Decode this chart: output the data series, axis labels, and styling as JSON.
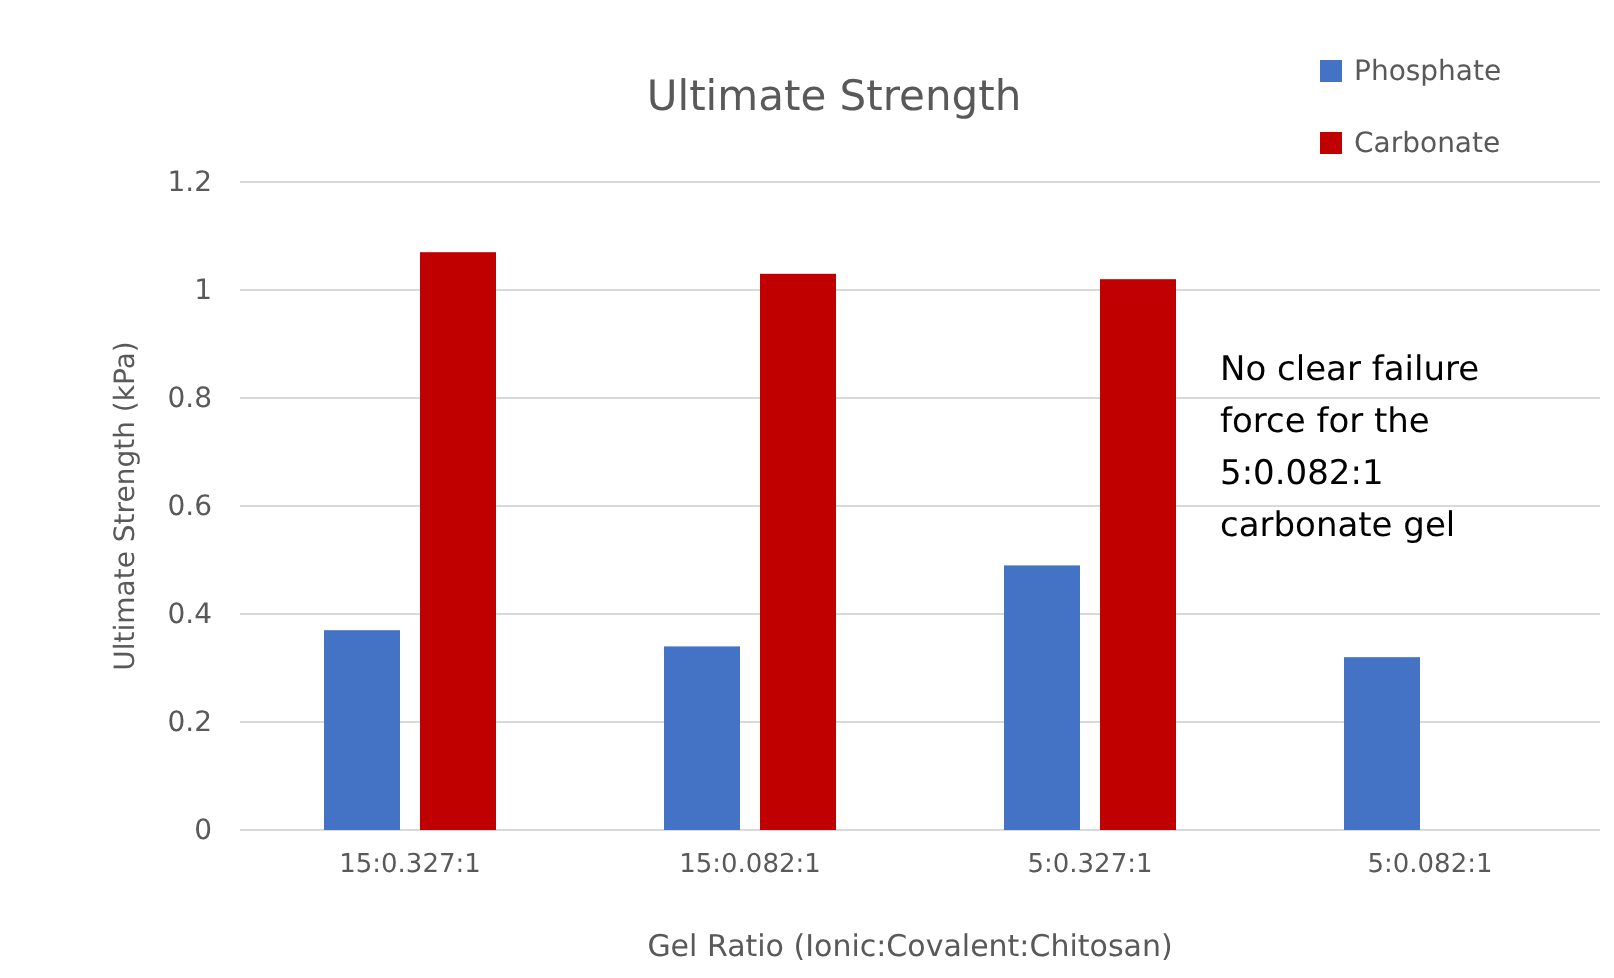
{
  "chart_data": {
    "type": "bar",
    "title": "Ultimate Strength",
    "xlabel": "Gel Ratio (Ionic:Covalent:Chitosan)",
    "ylabel": "Ultimate Strength (kPa)",
    "categories": [
      "15:0.327:1",
      "15:0.082:1",
      "5:0.327:1",
      "5:0.082:1"
    ],
    "series": [
      {
        "name": "Phosphate",
        "color": "#4472c4",
        "values": [
          0.37,
          0.34,
          0.49,
          0.32
        ]
      },
      {
        "name": "Carbonate",
        "color": "#c00000",
        "values": [
          1.07,
          1.03,
          1.02,
          null
        ]
      }
    ],
    "ylim": [
      0,
      1.2
    ],
    "yticks": [
      {
        "value": 0,
        "label": "0"
      },
      0.2,
      0.4,
      0.6,
      0.8,
      {
        "value": 1,
        "label": "1"
      },
      1.2
    ],
    "grid": "y",
    "legend": "top right",
    "annotations": [
      "No clear failure force for the 5:0.082:1 carbonate gel"
    ]
  }
}
